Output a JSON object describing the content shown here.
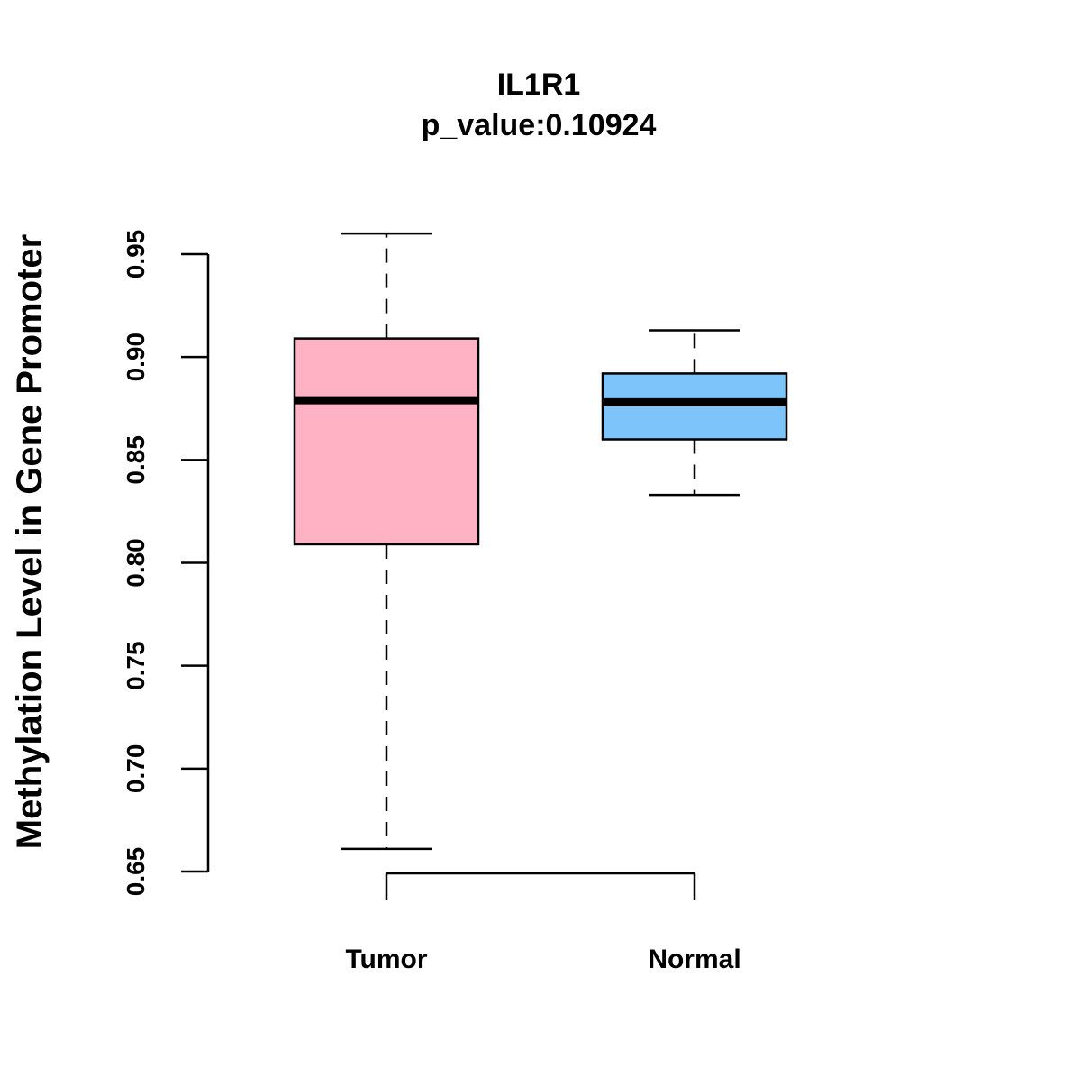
{
  "chart_data": {
    "type": "boxplot",
    "title": "IL1R1",
    "subtitle": "p_value:0.10924",
    "ylabel": "Methylation Level in Gene Promoter",
    "xlabel": "",
    "ylim": [
      0.65,
      0.96
    ],
    "y_ticks": [
      {
        "value": 0.65,
        "label": "0.65"
      },
      {
        "value": 0.7,
        "label": "0.70"
      },
      {
        "value": 0.75,
        "label": "0.75"
      },
      {
        "value": 0.8,
        "label": "0.80"
      },
      {
        "value": 0.85,
        "label": "0.85"
      },
      {
        "value": 0.9,
        "label": "0.90"
      },
      {
        "value": 0.95,
        "label": "0.95"
      }
    ],
    "categories": [
      "Tumor",
      "Normal"
    ],
    "boxes": [
      {
        "name": "Tumor",
        "min": 0.661,
        "q1": 0.809,
        "median": 0.879,
        "q3": 0.909,
        "max": 0.96,
        "color": "#FFB2C4"
      },
      {
        "name": "Normal",
        "min": 0.833,
        "q1": 0.86,
        "median": 0.878,
        "q3": 0.892,
        "max": 0.913,
        "color": "#7DC4FA"
      }
    ],
    "grid": false,
    "legend": "none"
  }
}
